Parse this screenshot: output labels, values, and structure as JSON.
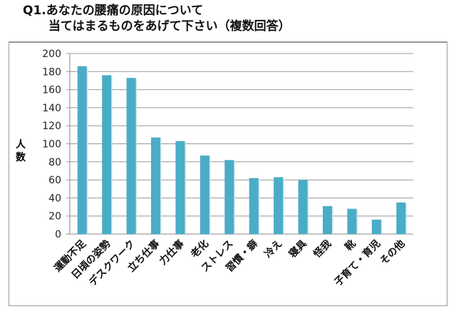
{
  "chart_data": {
    "type": "bar",
    "title": [
      "Q1.あなたの腰痛の原因について",
      "当てはまるものをあげて下さい（複数回答）"
    ],
    "ylabel": "人数",
    "xlabel": "",
    "ylim": [
      0,
      200
    ],
    "yticks": [
      0,
      20,
      40,
      60,
      80,
      100,
      120,
      140,
      160,
      180,
      200
    ],
    "grid": true,
    "categories": [
      "運動不足",
      "日頃の姿勢",
      "デスクワーク",
      "立ち仕事",
      "力仕事",
      "老化",
      "ストレス",
      "習慣・癖",
      "冷え",
      "寝具",
      "怪我",
      "靴",
      "子育て・育児",
      "その他"
    ],
    "values": [
      186,
      176,
      173,
      107,
      103,
      87,
      82,
      62,
      63,
      60,
      31,
      28,
      16,
      35
    ],
    "bar_color": "#4BACC6"
  }
}
